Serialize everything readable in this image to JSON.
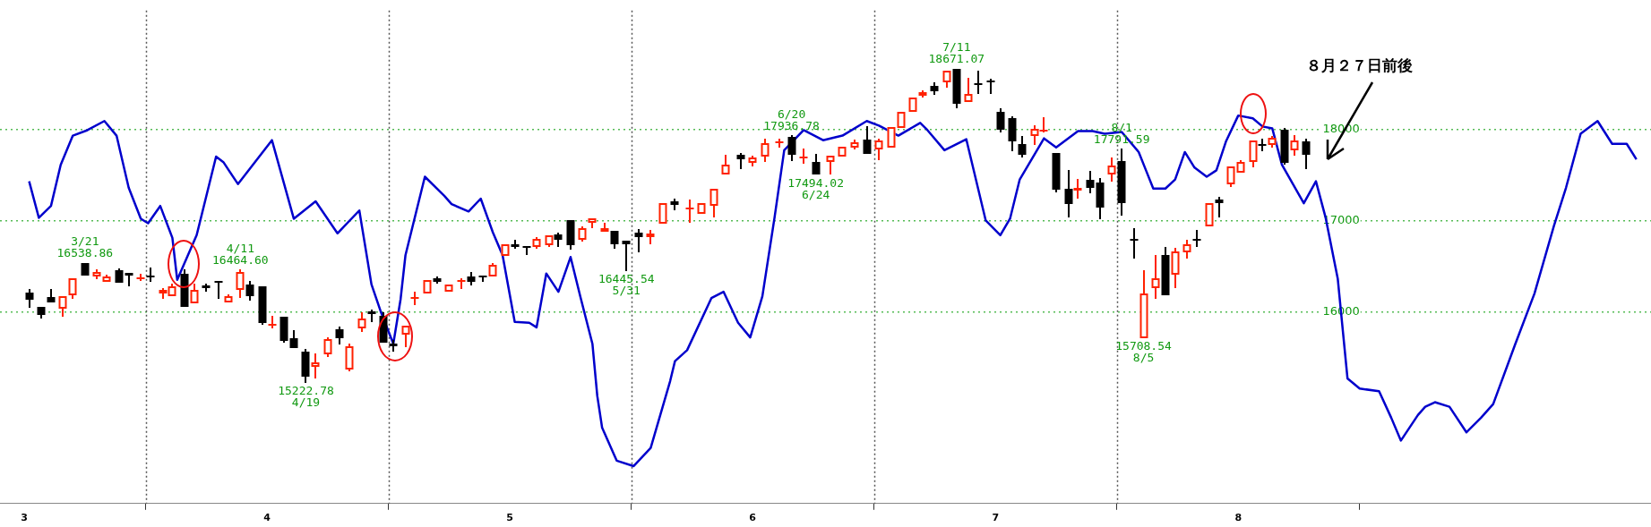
{
  "chart_data": {
    "type": "candlestick",
    "x": [
      3.02,
      3.07,
      3.11,
      3.16,
      3.2,
      3.25,
      3.3,
      3.34,
      3.39,
      3.43,
      3.48,
      3.52,
      3.57,
      3.61,
      3.66,
      3.7,
      3.75,
      3.8,
      3.84,
      3.89,
      3.93,
      3.98,
      4.02,
      4.07,
      4.11,
      4.16,
      4.2,
      4.25,
      4.3,
      4.34,
      4.39,
      4.43,
      4.48,
      4.52,
      4.57,
      4.61,
      4.66,
      4.7,
      4.75,
      4.8,
      4.84,
      4.89,
      4.93,
      4.98,
      5.02,
      5.07,
      5.11,
      5.16,
      5.2,
      5.25,
      5.3,
      5.34,
      5.39,
      5.43,
      5.48,
      5.53,
      5.58,
      5.63,
      5.68,
      5.74,
      5.79,
      5.84,
      5.89,
      5.95,
      6,
      6.05,
      6.11,
      6.16,
      6.21,
      6.26,
      6.32,
      6.37,
      6.42,
      6.47,
      6.52,
      6.57,
      6.61,
      6.66,
      6.7,
      6.75,
      6.8,
      6.84,
      6.89,
      6.93,
      6.98,
      7.02,
      7.07,
      7.11,
      7.16,
      7.2,
      7.25,
      7.3,
      7.34,
      7.39,
      7.43,
      7.48,
      7.52,
      7.57,
      7.61,
      7.66,
      7.7,
      7.74,
      7.79,
      7.83,
      7.88,
      7.92,
      7.97,
      8.01,
      8.06,
      8.1,
      8.14,
      8.19,
      8.23,
      8.28
    ],
    "ohlc": [
      [
        16210,
        16250,
        16040,
        16130
      ],
      [
        16050,
        16060,
        15930,
        15970
      ],
      [
        16160,
        16250,
        16090,
        16100
      ],
      [
        16030,
        16180,
        15950,
        16170
      ],
      [
        16180,
        16380,
        16140,
        16370
      ],
      [
        16530,
        16538.86,
        16390,
        16400
      ],
      [
        16390,
        16470,
        16360,
        16440
      ],
      [
        16330,
        16410,
        16320,
        16390
      ],
      [
        16460,
        16480,
        16310,
        16320
      ],
      [
        16430,
        16440,
        16280,
        16400
      ],
      [
        16370,
        16420,
        16340,
        16380
      ],
      [
        16400,
        16490,
        16330,
        16390
      ],
      [
        16200,
        16260,
        16140,
        16240
      ],
      [
        16170,
        16310,
        16160,
        16280
      ],
      [
        16420,
        16470,
        16040,
        16050
      ],
      [
        16090,
        16310,
        16080,
        16240
      ],
      [
        16290,
        16310,
        16220,
        16260
      ],
      [
        16340,
        16350,
        16140,
        16330
      ],
      [
        16100,
        16190,
        16090,
        16170
      ],
      [
        16240,
        16464.6,
        16150,
        16440
      ],
      [
        16300,
        16340,
        16120,
        16170
      ],
      [
        16280,
        16290,
        15860,
        15880
      ],
      [
        15860,
        15960,
        15820,
        15870
      ],
      [
        15950,
        15960,
        15660,
        15680
      ],
      [
        15710,
        15800,
        15590,
        15600
      ],
      [
        15560,
        15590,
        15222.78,
        15290
      ],
      [
        15400,
        15540,
        15270,
        15450
      ],
      [
        15530,
        15720,
        15510,
        15700
      ],
      [
        15810,
        15840,
        15640,
        15710
      ],
      [
        15370,
        15650,
        15350,
        15620
      ],
      [
        15820,
        16000,
        15780,
        15930
      ],
      [
        16010,
        16020,
        15890,
        15980
      ],
      [
        15960,
        16000,
        15650,
        15660
      ],
      [
        15650,
        15690,
        15560,
        15620
      ],
      [
        15750,
        15850,
        15610,
        15850
      ],
      [
        16140,
        16220,
        16070,
        16160
      ],
      [
        16200,
        16360,
        16200,
        16350
      ],
      [
        16370,
        16390,
        16310,
        16330
      ],
      [
        16220,
        16310,
        16220,
        16300
      ],
      [
        16330,
        16370,
        16250,
        16350
      ],
      [
        16390,
        16440,
        16290,
        16330
      ],
      [
        16400,
        16410,
        16330,
        16390
      ],
      [
        16390,
        16530,
        16380,
        16510
      ],
      [
        16610,
        16750,
        16600,
        16740
      ],
      [
        16740,
        16790,
        16690,
        16710
      ],
      [
        16720,
        16730,
        16620,
        16700
      ],
      [
        16710,
        16820,
        16690,
        16800
      ],
      [
        16730,
        16850,
        16710,
        16840
      ],
      [
        16850,
        16870,
        16710,
        16790
      ],
      [
        17000,
        17010,
        16680,
        16730
      ],
      [
        16790,
        16940,
        16770,
        16920
      ],
      [
        16980,
        17030,
        16920,
        17020
      ],
      [
        16880,
        16980,
        16870,
        16920
      ],
      [
        16890,
        16900,
        16690,
        16740
      ],
      [
        16780,
        16790,
        16445.54,
        16740
      ],
      [
        16870,
        16910,
        16650,
        16820
      ],
      [
        16820,
        16900,
        16740,
        16860
      ],
      [
        16970,
        17200,
        16960,
        17190
      ],
      [
        17210,
        17240,
        17110,
        17170
      ],
      [
        17120,
        17230,
        16980,
        17140
      ],
      [
        17070,
        17200,
        17060,
        17190
      ],
      [
        17160,
        17350,
        17030,
        17350
      ],
      [
        17500,
        17720,
        17490,
        17610
      ],
      [
        17720,
        17740,
        17560,
        17670
      ],
      [
        17630,
        17710,
        17590,
        17690
      ],
      [
        17700,
        17900,
        17640,
        17850
      ],
      [
        17860,
        17900,
        17800,
        17870
      ],
      [
        17920,
        17936.78,
        17650,
        17720
      ],
      [
        17680,
        17790,
        17620,
        17700
      ],
      [
        17640,
        17730,
        17494.02,
        17500
      ],
      [
        17640,
        17720,
        17500,
        17710
      ],
      [
        17700,
        17820,
        17690,
        17810
      ],
      [
        17800,
        17890,
        17780,
        17860
      ],
      [
        17890,
        18030,
        17720,
        17730
      ],
      [
        17780,
        17900,
        17660,
        17880
      ],
      [
        17800,
        18030,
        17800,
        18020
      ],
      [
        18010,
        18190,
        18000,
        18190
      ],
      [
        18190,
        18360,
        18190,
        18350
      ],
      [
        18370,
        18430,
        18350,
        18410
      ],
      [
        18470,
        18510,
        18380,
        18420
      ],
      [
        18510,
        18650,
        18460,
        18640
      ],
      [
        18660,
        18671.07,
        18230,
        18280
      ],
      [
        18300,
        18560,
        18290,
        18390
      ],
      [
        18500,
        18640,
        18390,
        18480
      ],
      [
        18530,
        18550,
        18390,
        18510
      ],
      [
        18190,
        18230,
        17970,
        17990
      ],
      [
        18120,
        18140,
        17760,
        17870
      ],
      [
        17840,
        17930,
        17690,
        17720
      ],
      [
        17930,
        18040,
        17830,
        18000
      ],
      [
        17980,
        18130,
        17970,
        17990
      ],
      [
        17740,
        17750,
        17310,
        17340
      ],
      [
        17350,
        17550,
        17030,
        17180
      ],
      [
        17330,
        17460,
        17240,
        17360
      ],
      [
        17450,
        17540,
        17300,
        17360
      ],
      [
        17420,
        17470,
        17010,
        17140
      ],
      [
        17500,
        17690,
        17430,
        17600
      ],
      [
        17650,
        17791.59,
        17050,
        17190
      ],
      [
        16800,
        16920,
        16580,
        16780
      ],
      [
        15708.54,
        16460,
        15708.54,
        16200
      ],
      [
        16260,
        16620,
        16140,
        16370
      ],
      [
        16620,
        16710,
        16170,
        16180
      ],
      [
        16410,
        16700,
        16260,
        16660
      ],
      [
        16650,
        16790,
        16580,
        16740
      ],
      [
        16800,
        16900,
        16710,
        16780
      ],
      [
        16940,
        17190,
        16940,
        17190
      ],
      [
        17230,
        17260,
        17030,
        17190
      ],
      [
        17400,
        17600,
        17370,
        17590
      ],
      [
        17520,
        17660,
        17510,
        17640
      ],
      [
        17640,
        17890,
        17580,
        17880
      ],
      [
        17840,
        17900,
        17760,
        17820
      ],
      [
        17830,
        17930,
        17800,
        17910
      ],
      [
        17990,
        18010,
        17610,
        17630
      ],
      [
        17770,
        17940,
        17710,
        17880
      ],
      [
        17870,
        17900,
        17560,
        17720
      ]
    ],
    "series": [
      {
        "type": "line",
        "color": "#0000cc",
        "x": [
          3.02,
          3.06,
          3.11,
          3.15,
          3.2,
          3.26,
          3.33,
          3.38,
          3.43,
          3.48,
          3.51,
          3.56,
          3.61,
          3.63,
          3.71,
          3.79,
          3.82,
          3.88,
          4.02,
          4.11,
          4.2,
          4.29,
          4.38,
          4.43,
          4.47,
          4.52,
          4.55,
          4.57,
          4.65,
          4.73,
          4.76,
          4.83,
          4.88,
          4.93,
          4.97,
          5.02,
          5.08,
          5.11,
          5.15,
          5.2,
          5.25,
          5.29,
          5.34,
          5.36,
          5.38,
          5.44,
          5.51,
          5.58,
          5.66,
          5.68,
          5.73,
          5.83,
          5.88,
          5.94,
          5.99,
          6.04,
          6.09,
          6.13,
          6.21,
          6.29,
          6.37,
          6.47,
          6.52,
          6.6,
          6.69,
          6.72,
          6.79,
          6.88,
          6.96,
          7.02,
          7.06,
          7.1,
          7.2,
          7.25,
          7.34,
          7.4,
          7.45,
          7.52,
          7.59,
          7.62,
          7.65,
          7.7,
          7.74,
          7.78,
          7.82,
          7.87,
          7.91,
          7.95,
          8,
          8.06,
          8.1,
          8.14,
          8.18,
          8.27,
          8.32,
          8.36,
          8.41,
          8.45,
          8.5,
          8.58,
          8.63,
          8.67,
          8.74,
          8.77,
          8.81,
          8.87,
          8.94,
          9,
          9.05,
          9.14,
          9.22,
          9.3,
          9.35,
          9.41,
          9.48,
          9.54,
          9.6,
          9.64
        ],
        "values": [
          17430,
          17030,
          17160,
          17610,
          17930,
          17990,
          18090,
          17930,
          17360,
          17020,
          16970,
          17160,
          16810,
          16350,
          16840,
          17700,
          17640,
          17400,
          17880,
          17020,
          17210,
          16860,
          17110,
          16300,
          15990,
          15650,
          16140,
          16620,
          17480,
          17270,
          17180,
          17100,
          17240,
          16870,
          16620,
          15890,
          15880,
          15830,
          16420,
          16220,
          16600,
          16170,
          15650,
          15080,
          14730,
          14370,
          14310,
          14510,
          15240,
          15460,
          15580,
          16150,
          16220,
          15880,
          15720,
          16170,
          17030,
          17770,
          17990,
          17880,
          17930,
          18090,
          18040,
          17930,
          18070,
          17990,
          17770,
          17890,
          17000,
          16840,
          17020,
          17450,
          17900,
          17800,
          17980,
          17980,
          17950,
          17970,
          17750,
          17550,
          17350,
          17350,
          17450,
          17750,
          17580,
          17480,
          17550,
          17870,
          18150,
          18120,
          18030,
          18010,
          17610,
          17190,
          17430,
          17030,
          16360,
          15270,
          15160,
          15130,
          14840,
          14590,
          14870,
          14960,
          15010,
          14960,
          14680,
          14840,
          14990,
          15640,
          16200,
          16940,
          17360,
          17950,
          18090,
          17840,
          17840,
          17670
        ]
      }
    ],
    "xlim": [
      2.9,
      9.7
    ],
    "xticks": [
      3,
      {
        "value": 3.5,
        "label": null
      },
      4,
      {
        "value": 4.5,
        "label": null
      },
      5,
      {
        "value": 5.5,
        "label": null
      },
      6,
      {
        "value": 6.5,
        "label": null
      },
      7,
      {
        "value": 7.5,
        "label": null
      },
      8,
      {
        "value": 8.5,
        "label": null
      }
    ],
    "ylim": [
      13900,
      19300
    ],
    "yticks": [
      16000,
      17000,
      18000
    ],
    "grid": "y",
    "marker": "none",
    "ref_lines": [
      {
        "axis": "x",
        "value": 3.5,
        "color": "#555555",
        "line_style": "dotted"
      },
      {
        "axis": "x",
        "value": 4.5,
        "color": "#555555",
        "line_style": "dotted"
      },
      {
        "axis": "x",
        "value": 5.5,
        "color": "#555555",
        "line_style": "dotted"
      },
      {
        "axis": "x",
        "value": 6.5,
        "color": "#555555",
        "line_style": "dotted"
      },
      {
        "axis": "x",
        "value": 7.5,
        "color": "#555555",
        "line_style": "dotted"
      }
    ],
    "annotations": [
      {
        "text": "3/21\n16538.86",
        "x": 3.25,
        "y": 16538.86
      },
      {
        "text": "4/11\n16464.60",
        "x": 3.89,
        "y": 16464.6
      },
      {
        "text": "15222.78\n4/19",
        "x": 4.16,
        "y": 15222.78
      },
      {
        "text": "16445.54\n5/31",
        "x": 5.48,
        "y": 16445.54
      },
      {
        "text": "6/20\n17936.78",
        "x": 6.16,
        "y": 17936.78
      },
      {
        "text": "17494.02\n6/24",
        "x": 6.26,
        "y": 17494.02
      },
      {
        "text": "7/11\n18671.07",
        "x": 6.84,
        "y": 18671.07
      },
      {
        "text": "8/1\n17791.59",
        "x": 7.52,
        "y": 17791.59
      },
      {
        "text": "15708.54\n8/5",
        "x": 7.61,
        "y": 15708.54
      },
      "８月２７日前後"
    ]
  }
}
